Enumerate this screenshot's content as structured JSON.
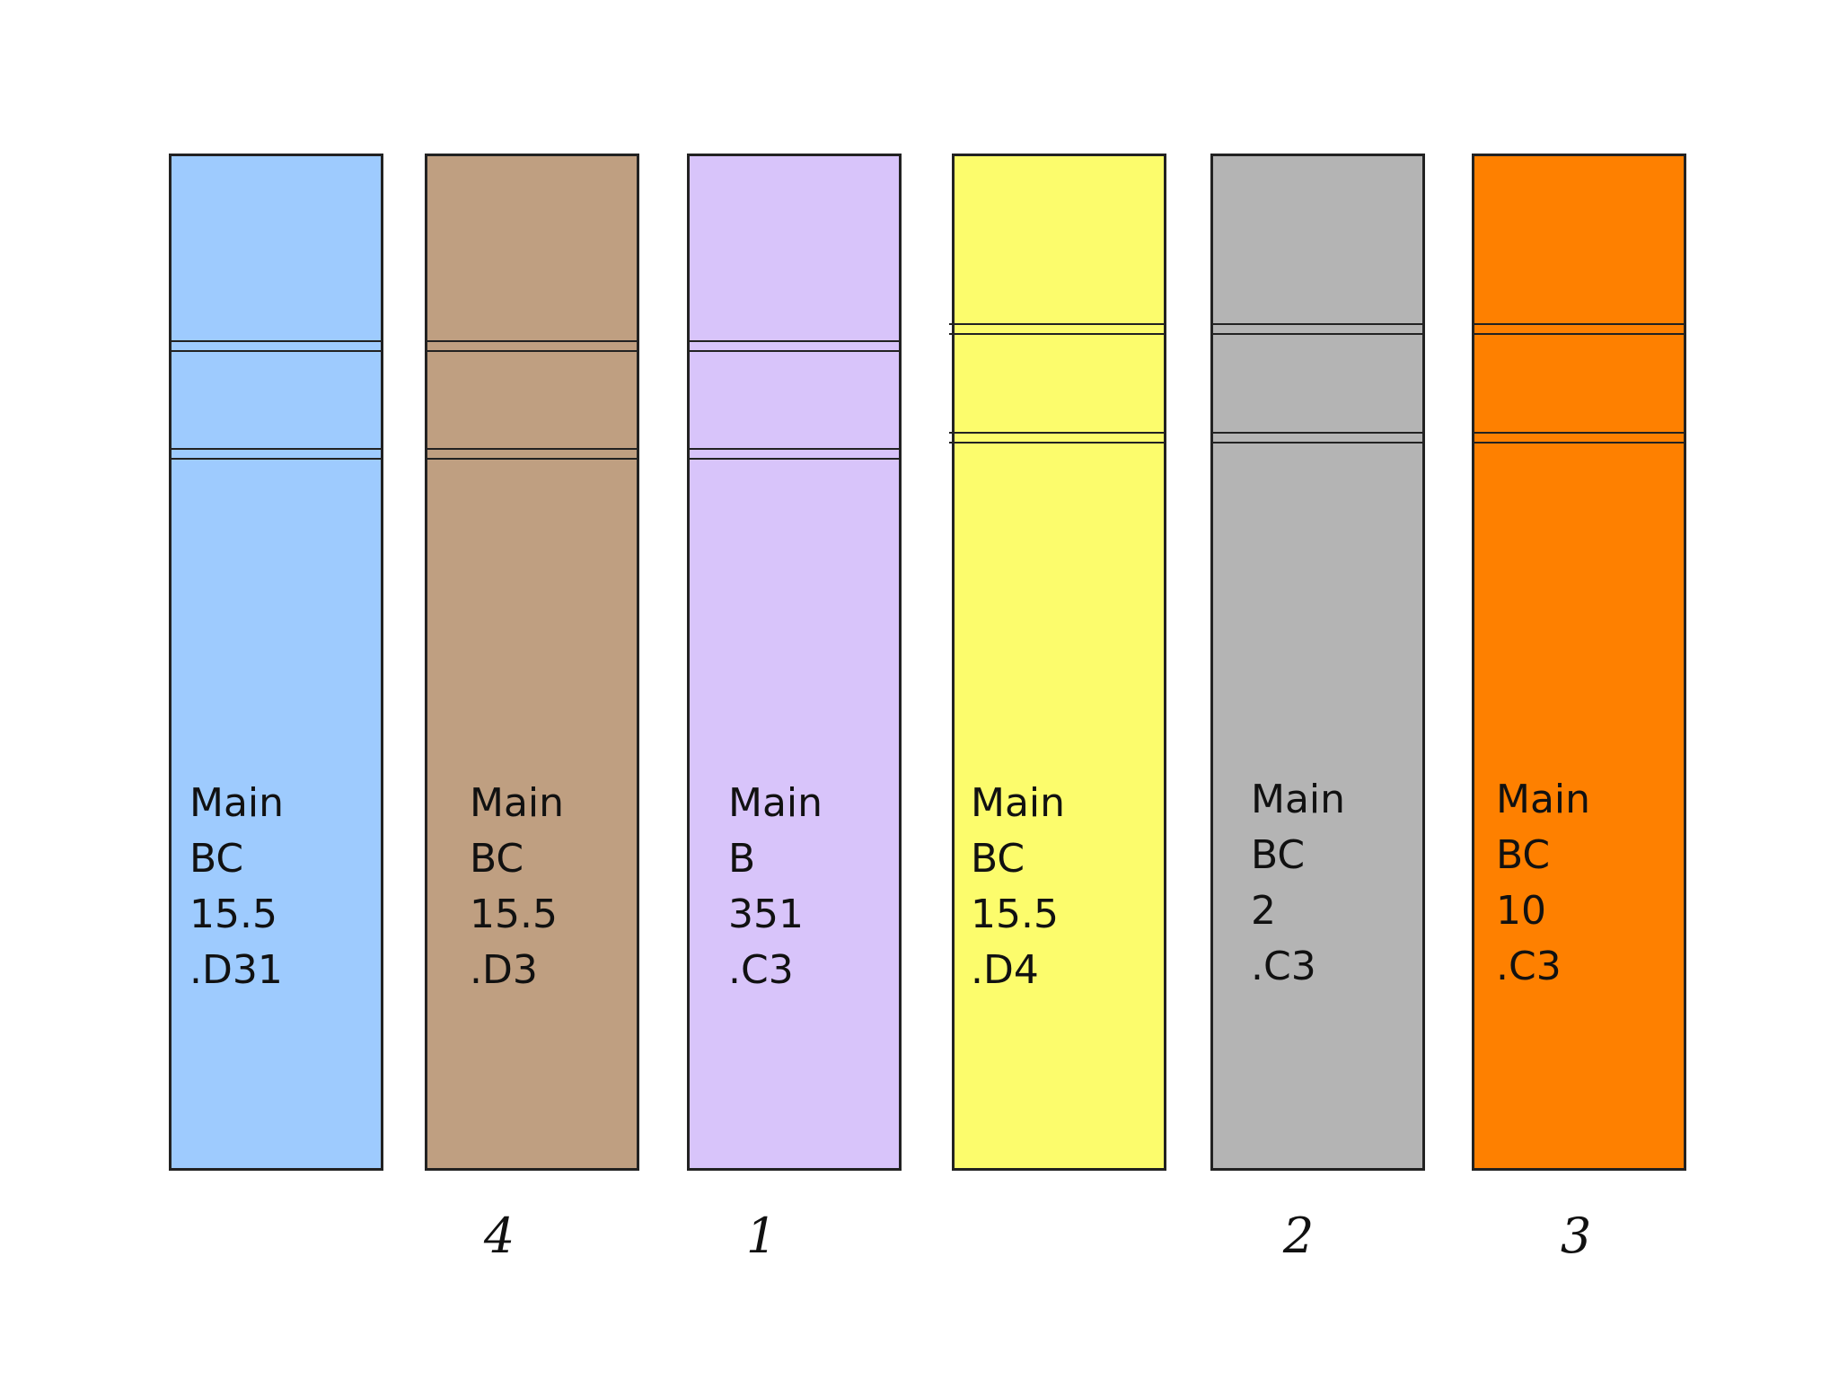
{
  "books": [
    {
      "color": "#9ECBFE",
      "call_number": [
        "Main",
        "BC",
        "15.5",
        ".D31"
      ],
      "order": ""
    },
    {
      "color": "#BF9F81",
      "call_number": [
        "Main",
        "BC",
        "15.5",
        ".D3"
      ],
      "order": "4"
    },
    {
      "color": "#D8C4FA",
      "call_number": [
        "Main",
        "B",
        "351",
        ".C3"
      ],
      "order": "1"
    },
    {
      "color": "#FCFC6C",
      "call_number": [
        "Main",
        "BC",
        "15.5",
        ".D4"
      ],
      "order": ""
    },
    {
      "color": "#B4B4B4",
      "call_number": [
        "Main",
        "BC",
        "2",
        ".C3"
      ],
      "order": "2"
    },
    {
      "color": "#FE8000",
      "call_number": [
        "Main",
        "BC",
        "10",
        ".C3"
      ],
      "order": "3"
    }
  ]
}
